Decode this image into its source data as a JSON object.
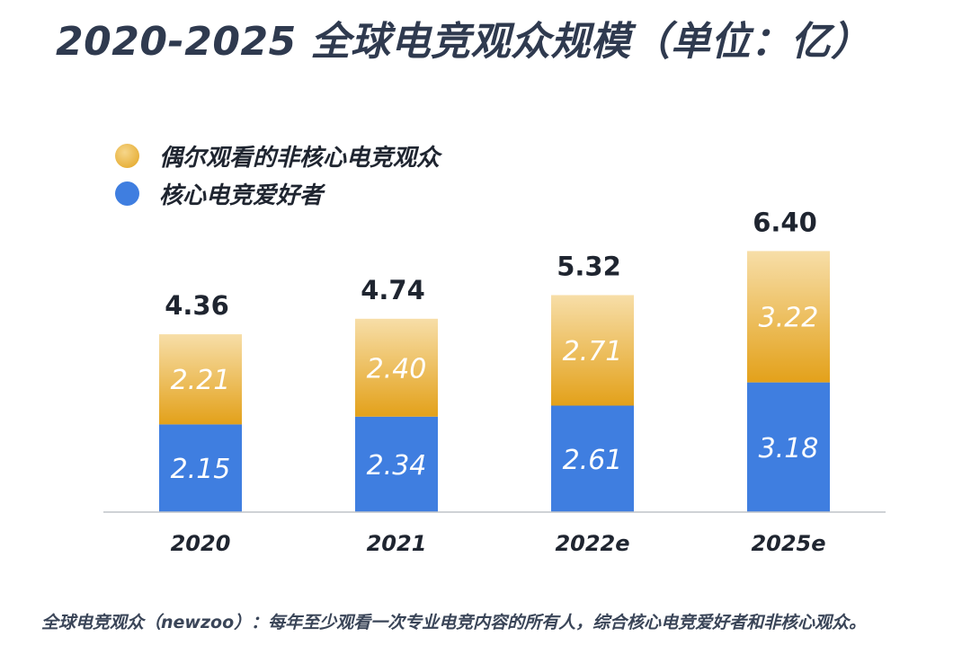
{
  "title": "2020-2025 全球电竞观众规模（单位：亿）",
  "legend": {
    "casual": {
      "label": "偶尔观看的非核心电竞观众",
      "color": "#ecbc4e"
    },
    "core": {
      "label": "核心电竞爱好者",
      "color": "#3f7ee0"
    }
  },
  "footnote": "全球电竞观众（newzoo）：每年至少观看一次专业电竞内容的所有人，综合核心电竞爱好者和非核心观众。",
  "chart_data": {
    "type": "bar",
    "stacked": true,
    "title": "2020-2025 全球电竞观众规模（单位：亿）",
    "categories": [
      "2020",
      "2021",
      "2022e",
      "2025e"
    ],
    "series": [
      {
        "name": "核心电竞爱好者",
        "values": [
          2.15,
          2.34,
          2.61,
          3.18
        ],
        "labels": [
          "2.15",
          "2.34",
          "2.61",
          "3.18"
        ],
        "color": "#3f7ee0"
      },
      {
        "name": "偶尔观看的非核心电竞观众",
        "values": [
          2.21,
          2.4,
          2.71,
          3.22
        ],
        "labels": [
          "2.21",
          "2.40",
          "2.71",
          "3.22"
        ],
        "color": "#ecbc4e"
      }
    ],
    "totals": [
      4.36,
      4.74,
      5.32,
      6.4
    ],
    "total_labels": [
      "4.36",
      "4.74",
      "5.32",
      "6.40"
    ],
    "legend_position": "top-left",
    "grid": false
  }
}
